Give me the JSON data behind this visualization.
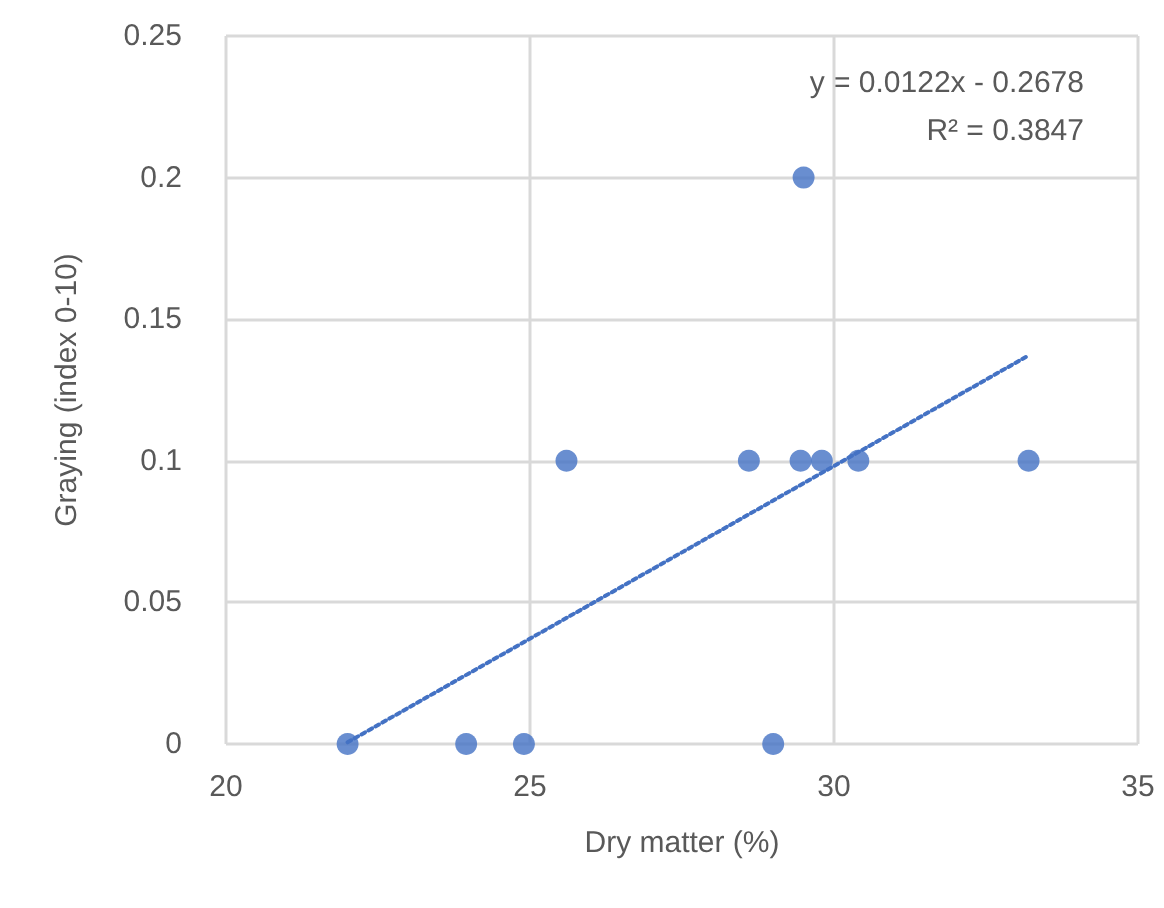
{
  "chart_data": {
    "type": "scatter",
    "xlabel": "Dry matter (%)",
    "ylabel": "Graying (index 0-10)",
    "xlim": [
      20,
      35
    ],
    "xticks": [
      20,
      25,
      30,
      35
    ],
    "ylim": [
      0,
      0.25
    ],
    "yticks": [
      0,
      0.05,
      0.1,
      0.15,
      0.2,
      0.25
    ],
    "grid": true,
    "marker": "circle",
    "series": [
      {
        "color": "#4472c4",
        "x": [
          22.0,
          23.95,
          24.9,
          25.6,
          28.6,
          29.0,
          29.45,
          29.5,
          29.8,
          30.4,
          33.2
        ],
        "values": [
          0,
          0,
          0,
          0.1,
          0.1,
          0,
          0.1,
          0.2,
          0.1,
          0.1,
          0.1
        ]
      },
      {
        "type": "line",
        "marker": "none",
        "color": "#4472c4",
        "line_style": "dotted",
        "x": [
          22.0,
          33.2
        ],
        "values": [
          0.0006,
          0.1372
        ]
      }
    ],
    "annotations": [
      "y = 0.0122x - 0.2678",
      "R² = 0.3847"
    ]
  }
}
